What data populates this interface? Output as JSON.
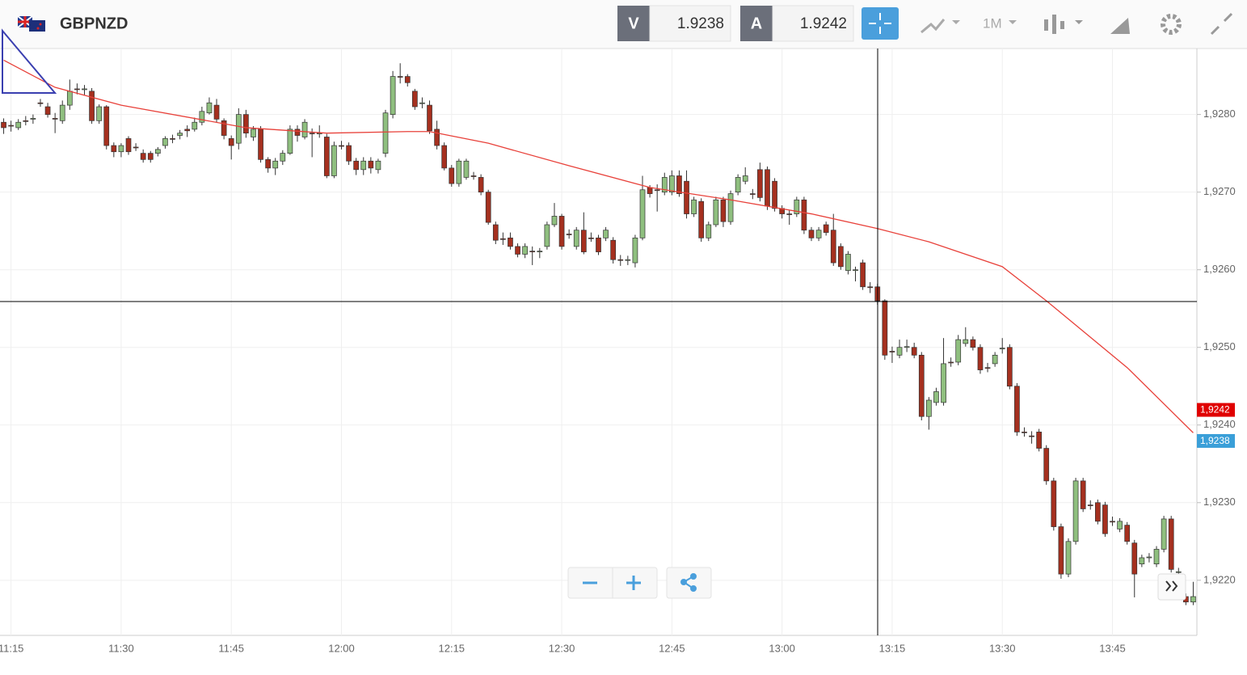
{
  "toolbar": {
    "symbol": "GBPNZD",
    "sell_label": "V",
    "sell_price": "1.9238",
    "buy_label": "A",
    "buy_price": "1.9242",
    "timeframe": "1M"
  },
  "chart_data": {
    "type": "candlestick",
    "grid": true,
    "up_color": "#8fbf7f",
    "down_color": "#a5301f",
    "categories": [
      null,
      "11:15",
      null,
      null,
      null,
      null,
      null,
      null,
      null,
      null,
      null,
      null,
      null,
      null,
      null,
      null,
      "11:30",
      null,
      null,
      null,
      null,
      null,
      null,
      null,
      null,
      null,
      null,
      null,
      null,
      null,
      null,
      "11:45",
      null,
      null,
      null,
      null,
      null,
      null,
      null,
      null,
      null,
      null,
      null,
      null,
      null,
      null,
      "12:00",
      null,
      null,
      null,
      null,
      null,
      null,
      null,
      null,
      null,
      null,
      null,
      null,
      null,
      null,
      "12:15",
      null,
      null,
      null,
      null,
      null,
      null,
      null,
      null,
      null,
      null,
      null,
      null,
      null,
      null,
      "12:30",
      null,
      null,
      null,
      null,
      null,
      null,
      null,
      null,
      null,
      null,
      null,
      null,
      null,
      null,
      "12:45",
      null,
      null,
      null,
      null,
      null,
      null,
      null,
      null,
      null,
      null,
      null,
      null,
      null,
      null,
      "13:00",
      null,
      null,
      null,
      null,
      null,
      null,
      null,
      null,
      null,
      null,
      null,
      null,
      null,
      null,
      "13:15",
      null,
      null,
      null,
      null,
      null,
      null,
      null,
      null,
      null,
      null,
      null,
      null,
      null,
      null,
      "13:30",
      null,
      null,
      null,
      null,
      null,
      null,
      null,
      null,
      null,
      null,
      null,
      null,
      null,
      null,
      "13:45",
      null,
      null,
      null,
      null,
      null,
      null,
      null,
      null,
      null,
      null,
      null
    ],
    "ohlc": [
      [
        1.9279,
        1.92795,
        1.92775,
        1.92783
      ],
      [
        1.92786,
        1.92792,
        1.92778,
        1.92785
      ],
      [
        1.92783,
        1.92794,
        1.9278,
        1.9279
      ],
      [
        1.92792,
        1.92798,
        1.92786,
        1.92791
      ],
      [
        1.92794,
        1.928,
        1.92788,
        1.92795
      ],
      [
        1.92815,
        1.9282,
        1.9281,
        1.92814
      ],
      [
        1.9281,
        1.92815,
        1.92796,
        1.928
      ],
      [
        1.92795,
        1.92802,
        1.92776,
        1.92794
      ],
      [
        1.92792,
        1.92818,
        1.92788,
        1.92812
      ],
      [
        1.92812,
        1.92845,
        1.92806,
        1.9283
      ],
      [
        1.92833,
        1.9284,
        1.92826,
        1.92832
      ],
      [
        1.92832,
        1.92838,
        1.92825,
        1.92833
      ],
      [
        1.9283,
        1.92834,
        1.92788,
        1.92792
      ],
      [
        1.92792,
        1.92813,
        1.92788,
        1.9281
      ],
      [
        1.9281,
        1.92812,
        1.92755,
        1.9276
      ],
      [
        1.9276,
        1.92764,
        1.92745,
        1.92752
      ],
      [
        1.92752,
        1.92763,
        1.92745,
        1.9276
      ],
      [
        1.92769,
        1.92772,
        1.92748,
        1.92752
      ],
      [
        1.92758,
        1.92763,
        1.92753,
        1.92757
      ],
      [
        1.9275,
        1.92755,
        1.92738,
        1.92742
      ],
      [
        1.9275,
        1.92753,
        1.92738,
        1.92742
      ],
      [
        1.9275,
        1.92758,
        1.92746,
        1.92755
      ],
      [
        1.9276,
        1.92772,
        1.92756,
        1.92769
      ],
      [
        1.92769,
        1.92774,
        1.92763,
        1.92768
      ],
      [
        1.92773,
        1.9278,
        1.92768,
        1.92776
      ],
      [
        1.92781,
        1.92786,
        1.92771,
        1.92779
      ],
      [
        1.92781,
        1.92796,
        1.92778,
        1.9279
      ],
      [
        1.9279,
        1.9281,
        1.92786,
        1.92804
      ],
      [
        1.92802,
        1.92822,
        1.928,
        1.92815
      ],
      [
        1.92812,
        1.9282,
        1.9279,
        1.92794
      ],
      [
        1.92792,
        1.92795,
        1.92768,
        1.92773
      ],
      [
        1.92769,
        1.92773,
        1.92742,
        1.9276
      ],
      [
        1.92763,
        1.92808,
        1.92755,
        1.928
      ],
      [
        1.928,
        1.92806,
        1.9277,
        1.92776
      ],
      [
        1.92771,
        1.92785,
        1.92766,
        1.92781
      ],
      [
        1.92781,
        1.92785,
        1.92738,
        1.92742
      ],
      [
        1.92742,
        1.92745,
        1.92725,
        1.92731
      ],
      [
        1.92731,
        1.92744,
        1.92722,
        1.9274
      ],
      [
        1.9274,
        1.92754,
        1.92735,
        1.9275
      ],
      [
        1.9275,
        1.92786,
        1.92748,
        1.92781
      ],
      [
        1.92781,
        1.92786,
        1.92765,
        1.92773
      ],
      [
        1.92771,
        1.92794,
        1.92768,
        1.9279
      ],
      [
        1.92776,
        1.92782,
        1.92745,
        1.92775
      ],
      [
        1.92775,
        1.92786,
        1.9277,
        1.92776
      ],
      [
        1.92771,
        1.92775,
        1.92718,
        1.92721
      ],
      [
        1.92721,
        1.92765,
        1.92718,
        1.9276
      ],
      [
        1.9276,
        1.92766,
        1.92755,
        1.92759
      ],
      [
        1.9276,
        1.92764,
        1.92735,
        1.9274
      ],
      [
        1.9274,
        1.92744,
        1.92722,
        1.92729
      ],
      [
        1.92729,
        1.92745,
        1.92722,
        1.9274
      ],
      [
        1.9274,
        1.92745,
        1.92724,
        1.92731
      ],
      [
        1.92729,
        1.92743,
        1.92724,
        1.9274
      ],
      [
        1.9275,
        1.92806,
        1.92745,
        1.92802
      ],
      [
        1.928,
        1.92856,
        1.92795,
        1.92849
      ],
      [
        1.92849,
        1.92866,
        1.9284,
        1.92848
      ],
      [
        1.92849,
        1.92852,
        1.92836,
        1.92841
      ],
      [
        1.9283,
        1.92833,
        1.92806,
        1.9281
      ],
      [
        1.92814,
        1.92822,
        1.92808,
        1.92815
      ],
      [
        1.92812,
        1.92818,
        1.92775,
        1.92779
      ],
      [
        1.92781,
        1.92792,
        1.92755,
        1.9276
      ],
      [
        1.9276,
        1.92764,
        1.92728,
        1.92731
      ],
      [
        1.92731,
        1.92735,
        1.92707,
        1.92711
      ],
      [
        1.92711,
        1.92743,
        1.92707,
        1.9274
      ],
      [
        1.92719,
        1.92743,
        1.92716,
        1.9274
      ],
      [
        1.92721,
        1.92726,
        1.92716,
        1.9272
      ],
      [
        1.92719,
        1.92723,
        1.92696,
        1.927
      ],
      [
        1.927,
        1.92703,
        1.92658,
        1.92661
      ],
      [
        1.92658,
        1.92662,
        1.92633,
        1.92638
      ],
      [
        1.9264,
        1.92648,
        1.92632,
        1.92639
      ],
      [
        1.92641,
        1.92648,
        1.92626,
        1.9263
      ],
      [
        1.9263,
        1.92634,
        1.92616,
        1.9262
      ],
      [
        1.9262,
        1.92634,
        1.92615,
        1.9263
      ],
      [
        1.92624,
        1.9263,
        1.92606,
        1.92623
      ],
      [
        1.92623,
        1.92628,
        1.92615,
        1.92624
      ],
      [
        1.9263,
        1.92662,
        1.92626,
        1.92658
      ],
      [
        1.92658,
        1.92686,
        1.92655,
        1.92669
      ],
      [
        1.92669,
        1.92672,
        1.92626,
        1.9263
      ],
      [
        1.92646,
        1.92652,
        1.9264,
        1.92645
      ],
      [
        1.9263,
        1.92655,
        1.92626,
        1.92651
      ],
      [
        1.92651,
        1.92674,
        1.9262,
        1.92623
      ],
      [
        1.92641,
        1.92648,
        1.92636,
        1.9264
      ],
      [
        1.92641,
        1.92645,
        1.92619,
        1.92623
      ],
      [
        1.92641,
        1.92655,
        1.92637,
        1.92651
      ],
      [
        1.92638,
        1.92642,
        1.92608,
        1.92613
      ],
      [
        1.92613,
        1.92619,
        1.92605,
        1.92612
      ],
      [
        1.92612,
        1.92618,
        1.92606,
        1.92613
      ],
      [
        1.92609,
        1.92645,
        1.92603,
        1.92641
      ],
      [
        1.92641,
        1.92721,
        1.92638,
        1.92703
      ],
      [
        1.92706,
        1.92709,
        1.92693,
        1.92698
      ],
      [
        1.92703,
        1.9271,
        1.92675,
        1.92702
      ],
      [
        1.927,
        1.92725,
        1.92696,
        1.92719
      ],
      [
        1.927,
        1.92728,
        1.92696,
        1.92721
      ],
      [
        1.92721,
        1.92728,
        1.92694,
        1.92698
      ],
      [
        1.92714,
        1.92728,
        1.92666,
        1.92672
      ],
      [
        1.92672,
        1.92694,
        1.92668,
        1.9269
      ],
      [
        1.92688,
        1.92692,
        1.92636,
        1.92641
      ],
      [
        1.92641,
        1.92662,
        1.92637,
        1.92658
      ],
      [
        1.92658,
        1.92694,
        1.92655,
        1.9269
      ],
      [
        1.9269,
        1.92694,
        1.92655,
        1.92662
      ],
      [
        1.92662,
        1.92702,
        1.92658,
        1.92698
      ],
      [
        1.927,
        1.92723,
        1.92696,
        1.92719
      ],
      [
        1.92714,
        1.92732,
        1.9271,
        1.92721
      ],
      [
        1.92698,
        1.92704,
        1.92691,
        1.92697
      ],
      [
        1.92729,
        1.92738,
        1.92688,
        1.92693
      ],
      [
        1.92729,
        1.92733,
        1.92677,
        1.92682
      ],
      [
        1.92714,
        1.92718,
        1.92675,
        1.92679
      ],
      [
        1.92679,
        1.92683,
        1.92666,
        1.92672
      ],
      [
        1.92672,
        1.92677,
        1.92658,
        1.92671
      ],
      [
        1.92672,
        1.92694,
        1.92668,
        1.9269
      ],
      [
        1.9269,
        1.92694,
        1.92646,
        1.92651
      ],
      [
        1.92651,
        1.92655,
        1.92637,
        1.92641
      ],
      [
        1.92641,
        1.92655,
        1.92637,
        1.92651
      ],
      [
        1.92658,
        1.92662,
        1.92644,
        1.92648
      ],
      [
        1.92651,
        1.92672,
        1.92605,
        1.92609
      ],
      [
        1.9263,
        1.92634,
        1.926,
        1.92604
      ],
      [
        1.92599,
        1.92624,
        1.92594,
        1.9262
      ],
      [
        1.92599,
        1.92604,
        1.92585,
        1.926
      ],
      [
        1.92609,
        1.92613,
        1.92574,
        1.92578
      ],
      [
        1.92578,
        1.92584,
        1.9257,
        1.92577
      ],
      [
        1.92578,
        1.92582,
        1.92555,
        1.9256
      ],
      [
        1.9256,
        1.92562,
        1.92484,
        1.9249
      ],
      [
        1.92495,
        1.92501,
        1.9248,
        1.92494
      ],
      [
        1.9249,
        1.9251,
        1.92486,
        1.925
      ],
      [
        1.925,
        1.9251,
        1.92494,
        1.92501
      ],
      [
        1.925,
        1.92506,
        1.92486,
        1.9249
      ],
      [
        1.9249,
        1.92494,
        1.92406,
        1.92411
      ],
      [
        1.92411,
        1.92436,
        1.92394,
        1.92432
      ],
      [
        1.92429,
        1.92448,
        1.92425,
        1.92443
      ],
      [
        1.92429,
        1.92512,
        1.92425,
        1.92479
      ],
      [
        1.92481,
        1.92487,
        1.92475,
        1.9248
      ],
      [
        1.92481,
        1.92516,
        1.92477,
        1.9251
      ],
      [
        1.92505,
        1.92526,
        1.92501,
        1.9251
      ],
      [
        1.9251,
        1.92514,
        1.92496,
        1.925
      ],
      [
        1.925,
        1.92504,
        1.92466,
        1.92471
      ],
      [
        1.92474,
        1.9248,
        1.92468,
        1.92473
      ],
      [
        1.92479,
        1.92494,
        1.92475,
        1.9249
      ],
      [
        1.92498,
        1.92512,
        1.92492,
        1.92499
      ],
      [
        1.925,
        1.92504,
        1.92446,
        1.9245
      ],
      [
        1.9245,
        1.92454,
        1.92386,
        1.92391
      ],
      [
        1.92391,
        1.92397,
        1.92385,
        1.9239
      ],
      [
        1.92386,
        1.92392,
        1.92376,
        1.92385
      ],
      [
        1.92391,
        1.92395,
        1.92366,
        1.9237
      ],
      [
        1.9237,
        1.92374,
        1.92323,
        1.92328
      ],
      [
        1.92328,
        1.92332,
        1.92264,
        1.92269
      ],
      [
        1.92269,
        1.92273,
        1.92202,
        1.92208
      ],
      [
        1.92208,
        1.92254,
        1.92204,
        1.9225
      ],
      [
        1.9225,
        1.92332,
        1.92246,
        1.92328
      ],
      [
        1.92328,
        1.92332,
        1.92288,
        1.92292
      ],
      [
        1.92297,
        1.92303,
        1.92291,
        1.92296
      ],
      [
        1.923,
        1.92304,
        1.92272,
        1.92276
      ],
      [
        1.92297,
        1.92301,
        1.92256,
        1.9226
      ],
      [
        1.92276,
        1.92282,
        1.9227,
        1.92275
      ],
      [
        1.92266,
        1.9228,
        1.92262,
        1.92276
      ],
      [
        1.92271,
        1.92275,
        1.92246,
        1.9225
      ],
      [
        1.92248,
        1.92252,
        1.92178,
        1.92208
      ],
      [
        1.92221,
        1.92233,
        1.92217,
        1.92229
      ],
      [
        1.92229,
        1.92235,
        1.92223,
        1.9223
      ],
      [
        1.92221,
        1.92244,
        1.92217,
        1.9224
      ],
      [
        1.9224,
        1.92283,
        1.92236,
        1.92279
      ],
      [
        1.92279,
        1.92283,
        1.9221,
        1.92214
      ],
      [
        1.9221,
        1.92216,
        1.92204,
        1.92211
      ],
      [
        1.92179,
        1.92183,
        1.92168,
        1.92172
      ],
      [
        1.92172,
        1.92198,
        1.92168,
        1.92179
      ]
    ],
    "moving_average": {
      "color": "#e8413a",
      "x": [
        0,
        7,
        16,
        33,
        44,
        55,
        58,
        66,
        77,
        88,
        99,
        110,
        119,
        126,
        136,
        142,
        153,
        162
      ],
      "values": [
        1.9287,
        1.92835,
        1.92812,
        1.92783,
        1.92776,
        1.92778,
        1.92778,
        1.92763,
        1.92734,
        1.92706,
        1.9269,
        1.92672,
        1.92653,
        1.92636,
        1.92604,
        1.9256,
        1.92474,
        1.9239
      ]
    },
    "ylim": [
      1.92129,
      1.92885
    ],
    "yticks": [
      {
        "value": 1.922,
        "label": "1,9220"
      },
      {
        "value": 1.923,
        "label": "1,9230"
      },
      {
        "value": 1.924,
        "label": "1,9240"
      },
      {
        "value": 1.925,
        "label": "1,9250"
      },
      {
        "value": 1.926,
        "label": "1,9260"
      },
      {
        "value": 1.927,
        "label": "1,9270"
      },
      {
        "value": 1.928,
        "label": "1,9280"
      }
    ],
    "price_tags": [
      {
        "value": 1.9242,
        "label": "1,9242",
        "color": "#e00000"
      },
      {
        "value": 1.9238,
        "label": "1,9238",
        "color": "#3a9fd8"
      }
    ]
  }
}
